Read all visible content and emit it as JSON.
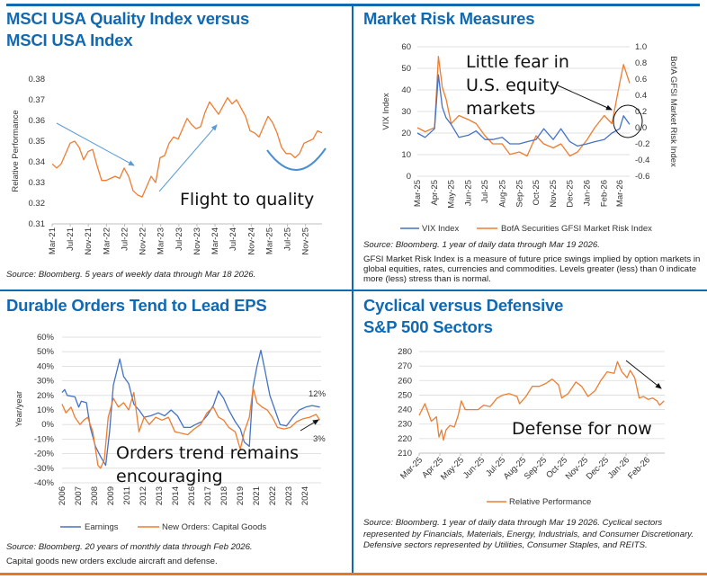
{
  "panels": {
    "quality": {
      "title_line1": "MSCI USA Quality Index versus",
      "title_line2": "MSCI USA Index",
      "source": "Source: Bloomberg. 5 years of weekly data through Mar 18 2026."
    },
    "risk": {
      "title": "Market Risk Measures",
      "source": "Source: Bloomberg. 1 year of daily data through Mar 19 2026.",
      "note": "GFSI Market Risk Index is a measure of future price swings implied by option markets in global equities, rates, currencies and commodities. Levels greater (less) than 0 indicate more (less) stress than is normal."
    },
    "durable": {
      "title": "Durable Orders Tend to Lead EPS",
      "source": "Source: Bloomberg. 20 years of monthly data through Feb 2026.",
      "note": "Capital goods new orders exclude aircraft and defense."
    },
    "cyclical": {
      "title_line1": "Cyclical versus Defensive",
      "title_line2": "S&P 500 Sectors",
      "source": "Source: Bloomberg. 1 year of daily data through Mar 19 2026. Cyclical sectors represented by Financials, Materials, Energy, Industrials, and Consumer Discretionary. Defensive sectors represented by Utilities, Consumer Staples, and REITS."
    }
  },
  "colors": {
    "title": "#1069b3",
    "orange": "#ed7d31",
    "blue": "#4472c4",
    "rule_blue": "#1069b3",
    "rule_orange": "#e87722",
    "grid": "#d9d9d9"
  },
  "chart_data": [
    {
      "type": "line",
      "ylabel": "Relative Performance",
      "ylim": [
        0.31,
        0.38
      ],
      "yticks": [
        "0.38",
        "0.37",
        "0.36",
        "0.35",
        "0.34",
        "0.33",
        "0.32",
        "0.31"
      ],
      "xticks": [
        "Mar-21",
        "Jul-21",
        "Nov-21",
        "Mar-22",
        "Jul-22",
        "Nov-22",
        "Mar-23",
        "Jul-23",
        "Nov-23",
        "Mar-24",
        "Jul-24",
        "Nov-24",
        "Mar-25",
        "Jul-25",
        "Nov-25"
      ],
      "grid": false,
      "annotation": "Flight to quality",
      "series": [
        {
          "color": "#ed7d31",
          "start": "Mar-21",
          "step": "monthly",
          "values": [
            0.339,
            0.337,
            0.339,
            0.344,
            0.349,
            0.35,
            0.347,
            0.341,
            0.345,
            0.346,
            0.338,
            0.331,
            0.331,
            0.332,
            0.333,
            0.332,
            0.337,
            0.333,
            0.326,
            0.324,
            0.323,
            0.328,
            0.333,
            0.33,
            0.342,
            0.343,
            0.349,
            0.352,
            0.351,
            0.356,
            0.361,
            0.358,
            0.356,
            0.357,
            0.364,
            0.369,
            0.366,
            0.363,
            0.367,
            0.371,
            0.368,
            0.37,
            0.366,
            0.362,
            0.355,
            0.354,
            0.352,
            0.357,
            0.362,
            0.359,
            0.354,
            0.347,
            0.344,
            0.344,
            0.342,
            0.344,
            0.349,
            0.35,
            0.351,
            0.355,
            0.354
          ]
        }
      ]
    },
    {
      "type": "line",
      "ylabel": "VIX Index",
      "y2label": "BofA GFSI Market Risk Index",
      "ylim": [
        0,
        60
      ],
      "y2lim": [
        -0.6,
        1.0
      ],
      "yticks": [
        "60",
        "50",
        "40",
        "30",
        "20",
        "10",
        "0"
      ],
      "y2ticks": [
        "1.0",
        "0.8",
        "0.6",
        "0.4",
        "0.2",
        "0.0",
        "-0.2",
        "-0.4",
        "-0.6"
      ],
      "xticks": [
        "Mar-25",
        "Apr-25",
        "May-25",
        "Jun-25",
        "Jul-25",
        "Aug-25",
        "Sep-25",
        "Oct-25",
        "Nov-25",
        "Dec-25",
        "Jan-26",
        "Feb-26",
        "Mar-26"
      ],
      "grid": true,
      "legend": "bottom",
      "annotation": [
        "Little fear in",
        "U.S. equity",
        "markets"
      ],
      "dates": [
        "2025-03-01",
        "2025-03-15",
        "2025-04-01",
        "2025-04-08",
        "2025-04-15",
        "2025-04-22",
        "2025-05-01",
        "2025-05-15",
        "2025-06-01",
        "2025-06-15",
        "2025-07-01",
        "2025-07-15",
        "2025-08-01",
        "2025-08-15",
        "2025-09-01",
        "2025-09-15",
        "2025-10-01",
        "2025-10-15",
        "2025-11-01",
        "2025-11-15",
        "2025-12-01",
        "2025-12-15",
        "2026-01-01",
        "2026-01-15",
        "2026-02-01",
        "2026-02-15",
        "2026-03-01",
        "2026-03-08",
        "2026-03-19"
      ],
      "series": [
        {
          "name": "VIX Index",
          "axis": "left",
          "color": "#4472c4",
          "values": [
            20,
            18,
            22,
            47,
            32,
            27,
            24,
            18,
            19,
            21,
            17,
            17,
            18,
            15,
            15,
            16,
            17,
            22,
            17,
            22,
            16,
            14,
            15,
            16,
            17,
            20,
            22,
            28,
            24
          ]
        },
        {
          "name": "BofA Securities GFSI Market Risk Index",
          "axis": "right",
          "color": "#ed7d31",
          "values": [
            0.0,
            -0.05,
            0.0,
            0.88,
            0.5,
            0.35,
            0.05,
            0.15,
            0.1,
            0.05,
            -0.1,
            -0.2,
            -0.2,
            -0.33,
            -0.3,
            -0.35,
            -0.1,
            -0.2,
            -0.25,
            -0.2,
            -0.35,
            -0.3,
            -0.15,
            0.0,
            0.15,
            0.05,
            0.55,
            0.78,
            0.55
          ]
        }
      ]
    },
    {
      "type": "line",
      "ylabel": "Year/year",
      "ylim": [
        -40,
        60
      ],
      "yticks": [
        "60%",
        "50%",
        "40%",
        "30%",
        "20%",
        "10%",
        "0%",
        "-10%",
        "-20%",
        "-30%",
        "-40%"
      ],
      "xticks": [
        "2006",
        "2007",
        "2008",
        "2009",
        "2011",
        "2012",
        "2013",
        "2014",
        "2016",
        "2017",
        "2018",
        "2019",
        "2021",
        "2022",
        "2023",
        "2024"
      ],
      "grid": true,
      "legend": "bottom",
      "annotation": [
        "Orders trend remains",
        "encouraging"
      ],
      "end_labels": {
        "earnings": "12%",
        "orders": "3%"
      },
      "series": [
        {
          "name": "Earnings",
          "color": "#4472c4",
          "x": [
            2006.0,
            2006.2,
            2006.4,
            2007.0,
            2007.3,
            2007.5,
            2007.9,
            2008.2,
            2008.6,
            2009.0,
            2009.4,
            2009.7,
            2010.0,
            2010.5,
            2010.8,
            2011.2,
            2011.6,
            2012.0,
            2012.4,
            2012.9,
            2013.5,
            2014.0,
            2014.5,
            2015.0,
            2015.5,
            2016.0,
            2016.4,
            2016.9,
            2017.3,
            2017.8,
            2018.2,
            2018.6,
            2019.0,
            2019.5,
            2019.9,
            2020.2,
            2020.6,
            2020.9,
            2021.2,
            2021.5,
            2021.8,
            2022.2,
            2022.6,
            2023.0,
            2023.5,
            2024.0,
            2024.5,
            2025.0,
            2025.5,
            2026.1
          ],
          "values": [
            22,
            24,
            20,
            19,
            12,
            16,
            15,
            -2,
            -15,
            -22,
            -28,
            -5,
            27,
            45,
            33,
            28,
            14,
            10,
            5,
            6,
            8,
            6,
            10,
            6,
            -2,
            -2,
            0,
            2,
            6,
            13,
            23,
            18,
            10,
            2,
            -3,
            -12,
            -15,
            26,
            40,
            51,
            38,
            20,
            10,
            0,
            -1,
            5,
            10,
            12,
            13,
            12
          ]
        },
        {
          "name": "New Orders: Capital Goods",
          "color": "#ed7d31",
          "x": [
            2006.0,
            2006.3,
            2006.7,
            2007.0,
            2007.4,
            2007.7,
            2008.0,
            2008.4,
            2008.8,
            2009.0,
            2009.3,
            2009.6,
            2010.0,
            2010.4,
            2010.8,
            2011.2,
            2011.6,
            2012.0,
            2012.4,
            2012.8,
            2013.3,
            2013.8,
            2014.3,
            2014.8,
            2015.3,
            2015.8,
            2016.3,
            2016.8,
            2017.3,
            2017.8,
            2018.2,
            2018.6,
            2019.0,
            2019.5,
            2019.9,
            2020.2,
            2020.6,
            2020.9,
            2021.2,
            2021.6,
            2022.0,
            2022.4,
            2022.8,
            2023.3,
            2023.8,
            2024.3,
            2024.8,
            2025.3,
            2025.8,
            2026.1
          ],
          "values": [
            14,
            8,
            12,
            5,
            0,
            3,
            5,
            -5,
            -28,
            -30,
            -24,
            5,
            18,
            12,
            15,
            10,
            22,
            -5,
            5,
            0,
            5,
            3,
            5,
            -5,
            -6,
            -7,
            -3,
            0,
            8,
            12,
            5,
            3,
            -2,
            -5,
            -17,
            -5,
            5,
            25,
            15,
            12,
            10,
            5,
            -2,
            -3,
            -2,
            2,
            4,
            5,
            7,
            3
          ]
        }
      ]
    },
    {
      "type": "line",
      "ylim": [
        210,
        280
      ],
      "yticks": [
        "280",
        "270",
        "260",
        "250",
        "240",
        "230",
        "220",
        "210"
      ],
      "xticks": [
        "Mar-25",
        "Apr-25",
        "May-25",
        "Jun-25",
        "Jul-25",
        "Aug-25",
        "Sep-25",
        "Oct-25",
        "Nov-25",
        "Dec-25",
        "Jan-26",
        "Feb-26"
      ],
      "grid": true,
      "legend": "bottom",
      "annotation": "Defense for now",
      "dates": [
        "2025-03-01",
        "2025-03-10",
        "2025-03-20",
        "2025-03-28",
        "2025-04-01",
        "2025-04-05",
        "2025-04-08",
        "2025-04-12",
        "2025-04-18",
        "2025-04-25",
        "2025-05-01",
        "2025-05-06",
        "2025-05-12",
        "2025-05-20",
        "2025-06-01",
        "2025-06-10",
        "2025-06-20",
        "2025-07-01",
        "2025-07-10",
        "2025-07-20",
        "2025-08-01",
        "2025-08-05",
        "2025-08-15",
        "2025-08-25",
        "2025-09-05",
        "2025-09-15",
        "2025-09-25",
        "2025-10-05",
        "2025-10-10",
        "2025-10-20",
        "2025-11-01",
        "2025-11-10",
        "2025-11-20",
        "2025-12-01",
        "2025-12-10",
        "2025-12-20",
        "2025-12-31",
        "2026-01-05",
        "2026-01-12",
        "2026-01-20",
        "2026-01-25",
        "2026-02-01",
        "2026-02-08",
        "2026-02-15",
        "2026-02-22",
        "2026-03-01",
        "2026-03-08",
        "2026-03-12",
        "2026-03-19"
      ],
      "series": [
        {
          "name": "Relative Performance",
          "color": "#ed7d31",
          "values": [
            236,
            244,
            232,
            235,
            221,
            226,
            219,
            226,
            229,
            228,
            236,
            246,
            240,
            240,
            240,
            243,
            242,
            248,
            250,
            251,
            249,
            244,
            249,
            256,
            256,
            258,
            261,
            257,
            248,
            251,
            259,
            256,
            249,
            253,
            260,
            266,
            265,
            273,
            266,
            262,
            267,
            262,
            248,
            249,
            247,
            248,
            246,
            243,
            246
          ]
        }
      ]
    }
  ]
}
